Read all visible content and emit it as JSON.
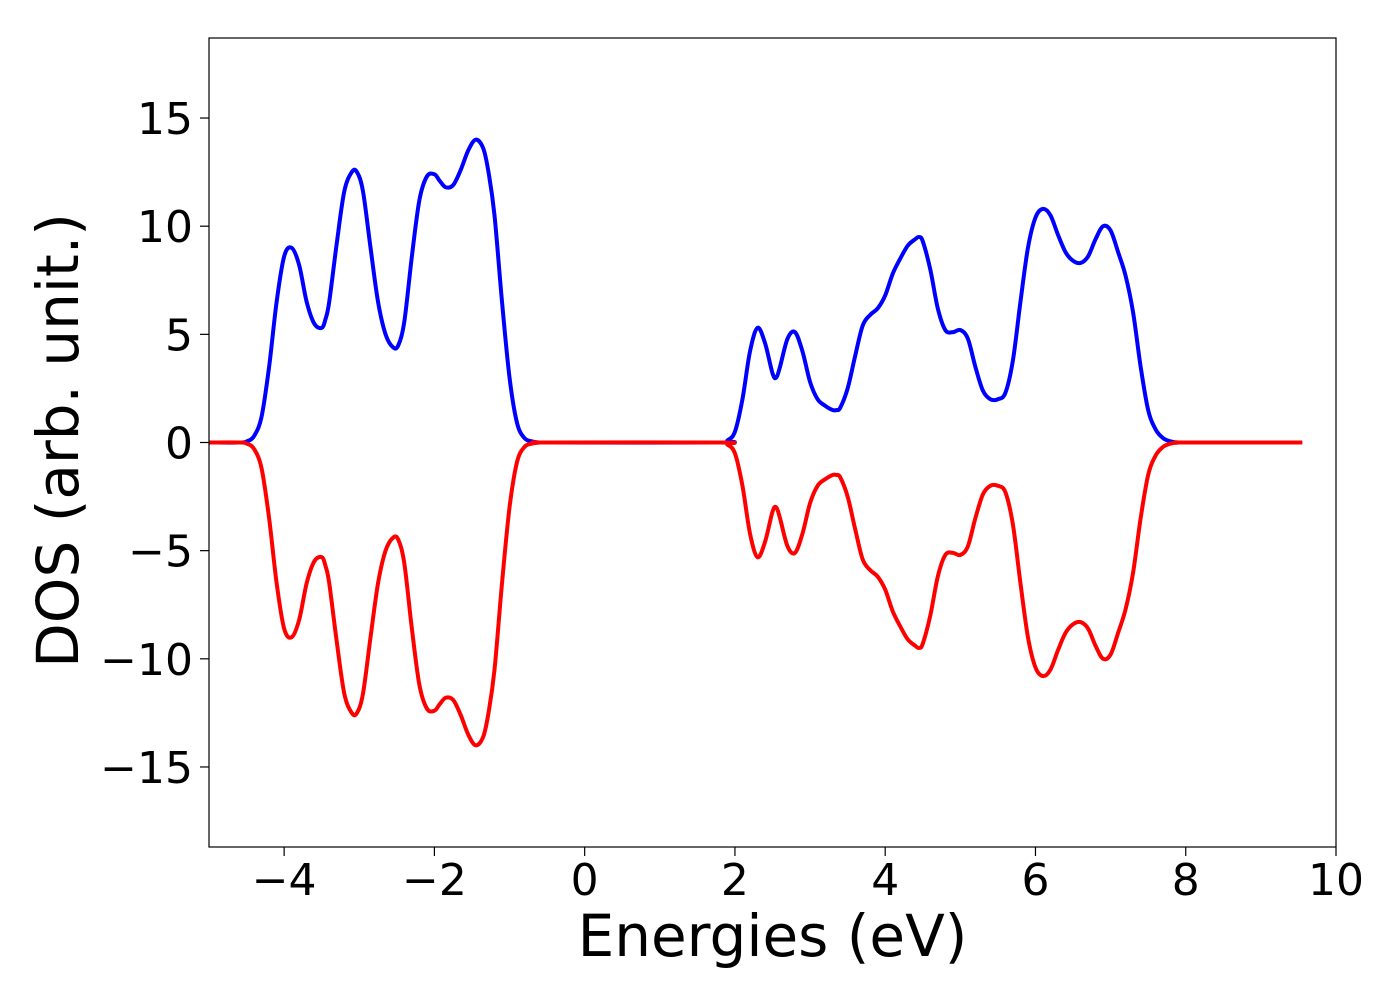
{
  "chart_data": {
    "type": "line",
    "title": "",
    "xlabel": "Energies (eV)",
    "ylabel": "DOS (arb. unit.)",
    "xlim": [
      -5,
      10
    ],
    "ylim": [
      -18.7,
      18.7
    ],
    "x_ticks": [
      -4,
      -2,
      0,
      2,
      4,
      6,
      8,
      10
    ],
    "x_tick_labels": [
      "−4",
      "−2",
      "0",
      "2",
      "4",
      "6",
      "8",
      "10"
    ],
    "y_ticks": [
      15,
      10,
      5,
      0,
      -5,
      -10,
      -15
    ],
    "y_tick_labels": [
      "15",
      "10",
      "5",
      "0",
      "−5",
      "−10",
      "−15"
    ],
    "grid": false,
    "legend": "none",
    "series": [
      {
        "color": "#0000ff",
        "x": [
          -5.0,
          -4.6,
          -4.5,
          -4.4,
          -4.3,
          -4.2,
          -4.1,
          -4.0,
          -3.9,
          -3.8,
          -3.7,
          -3.6,
          -3.5,
          -3.45,
          -3.4,
          -3.3,
          -3.2,
          -3.1,
          -3.03,
          -2.95,
          -2.85,
          -2.75,
          -2.65,
          -2.55,
          -2.48,
          -2.4,
          -2.3,
          -2.2,
          -2.1,
          -2.0,
          -1.93,
          -1.85,
          -1.75,
          -1.65,
          -1.55,
          -1.45,
          -1.35,
          -1.28,
          -1.2,
          -1.1,
          -1.0,
          -0.9,
          -0.8,
          -0.7,
          -0.6,
          -0.5,
          1.8,
          1.9,
          2.0,
          2.1,
          2.2,
          2.3,
          2.4,
          2.5,
          2.55,
          2.6,
          2.7,
          2.8,
          2.9,
          3.0,
          3.1,
          3.2,
          3.3,
          3.35,
          3.4,
          3.5,
          3.6,
          3.7,
          3.8,
          3.9,
          4.0,
          4.1,
          4.2,
          4.3,
          4.4,
          4.45,
          4.5,
          4.6,
          4.7,
          4.8,
          4.9,
          5.0,
          5.1,
          5.2,
          5.3,
          5.4,
          5.5,
          5.6,
          5.7,
          5.8,
          5.9,
          6.0,
          6.1,
          6.2,
          6.3,
          6.4,
          6.5,
          6.6,
          6.7,
          6.8,
          6.9,
          7.0,
          7.1,
          7.2,
          7.3,
          7.4,
          7.5,
          7.6,
          7.7,
          7.8,
          7.9,
          8.0,
          9.55
        ],
        "y": [
          0.0,
          0.0,
          0.05,
          0.3,
          1.2,
          3.5,
          6.5,
          8.6,
          9.0,
          8.2,
          6.5,
          5.5,
          5.3,
          5.7,
          6.5,
          9.2,
          11.6,
          12.5,
          12.5,
          11.6,
          9.0,
          6.5,
          5.0,
          4.4,
          4.5,
          5.6,
          8.6,
          11.2,
          12.3,
          12.4,
          12.1,
          11.8,
          11.9,
          12.6,
          13.5,
          14.0,
          13.6,
          12.5,
          10.5,
          6.5,
          3.0,
          0.9,
          0.2,
          0.05,
          0.0,
          0.0,
          0.0,
          0.1,
          0.5,
          2.0,
          4.2,
          5.3,
          4.6,
          3.2,
          3.0,
          3.5,
          4.8,
          5.1,
          4.2,
          2.8,
          2.0,
          1.7,
          1.5,
          1.5,
          1.6,
          2.5,
          4.0,
          5.4,
          5.9,
          6.2,
          6.8,
          7.8,
          8.5,
          9.1,
          9.4,
          9.5,
          9.3,
          8.0,
          6.2,
          5.2,
          5.1,
          5.2,
          4.8,
          3.5,
          2.4,
          2.0,
          2.0,
          2.3,
          3.8,
          6.5,
          9.0,
          10.4,
          10.8,
          10.5,
          9.6,
          8.8,
          8.4,
          8.3,
          8.6,
          9.4,
          10.0,
          9.8,
          8.8,
          7.7,
          6.0,
          3.5,
          1.5,
          0.6,
          0.2,
          0.05,
          0.0,
          0.0,
          0.0
        ]
      },
      {
        "color": "#ff0000",
        "x": [
          -5.0,
          -4.6,
          -4.5,
          -4.4,
          -4.3,
          -4.2,
          -4.1,
          -4.0,
          -3.9,
          -3.8,
          -3.7,
          -3.6,
          -3.5,
          -3.45,
          -3.4,
          -3.3,
          -3.2,
          -3.1,
          -3.03,
          -2.95,
          -2.85,
          -2.75,
          -2.65,
          -2.55,
          -2.48,
          -2.4,
          -2.3,
          -2.2,
          -2.1,
          -2.0,
          -1.93,
          -1.85,
          -1.75,
          -1.65,
          -1.55,
          -1.45,
          -1.35,
          -1.28,
          -1.2,
          -1.1,
          -1.0,
          -0.9,
          -0.8,
          -0.7,
          -0.6,
          -0.5,
          1.8,
          1.9,
          2.0,
          2.1,
          2.2,
          2.3,
          2.4,
          2.5,
          2.55,
          2.6,
          2.7,
          2.8,
          2.9,
          3.0,
          3.1,
          3.2,
          3.3,
          3.35,
          3.4,
          3.5,
          3.6,
          3.7,
          3.8,
          3.9,
          4.0,
          4.1,
          4.2,
          4.3,
          4.4,
          4.45,
          4.5,
          4.6,
          4.7,
          4.8,
          4.9,
          5.0,
          5.1,
          5.2,
          5.3,
          5.4,
          5.5,
          5.6,
          5.7,
          5.8,
          5.9,
          6.0,
          6.1,
          6.2,
          6.3,
          6.4,
          6.5,
          6.6,
          6.7,
          6.8,
          6.9,
          7.0,
          7.1,
          7.2,
          7.3,
          7.4,
          7.5,
          7.6,
          7.7,
          7.8,
          7.9,
          8.0,
          9.55
        ],
        "y": [
          0.0,
          0.0,
          -0.05,
          -0.3,
          -1.2,
          -3.5,
          -6.5,
          -8.6,
          -9.0,
          -8.2,
          -6.5,
          -5.5,
          -5.3,
          -5.7,
          -6.5,
          -9.2,
          -11.6,
          -12.5,
          -12.5,
          -11.6,
          -9.0,
          -6.5,
          -5.0,
          -4.4,
          -4.5,
          -5.6,
          -8.6,
          -11.2,
          -12.3,
          -12.4,
          -12.1,
          -11.8,
          -11.9,
          -12.6,
          -13.5,
          -14.0,
          -13.6,
          -12.5,
          -10.5,
          -6.5,
          -3.0,
          -0.9,
          -0.2,
          -0.05,
          0.0,
          0.0,
          0.0,
          -0.1,
          -0.5,
          -2.0,
          -4.2,
          -5.3,
          -4.6,
          -3.2,
          -3.0,
          -3.5,
          -4.8,
          -5.1,
          -4.2,
          -2.8,
          -2.0,
          -1.7,
          -1.5,
          -1.5,
          -1.6,
          -2.5,
          -4.0,
          -5.4,
          -5.9,
          -6.2,
          -6.8,
          -7.8,
          -8.5,
          -9.1,
          -9.4,
          -9.5,
          -9.3,
          -8.0,
          -6.2,
          -5.2,
          -5.1,
          -5.2,
          -4.8,
          -3.5,
          -2.4,
          -2.0,
          -2.0,
          -2.3,
          -3.8,
          -6.5,
          -9.0,
          -10.4,
          -10.8,
          -10.5,
          -9.6,
          -8.8,
          -8.4,
          -8.3,
          -8.6,
          -9.4,
          -10.0,
          -9.8,
          -8.8,
          -7.7,
          -6.0,
          -3.5,
          -1.5,
          -0.6,
          -0.2,
          -0.05,
          0.0,
          0.0,
          0.0
        ]
      }
    ]
  }
}
